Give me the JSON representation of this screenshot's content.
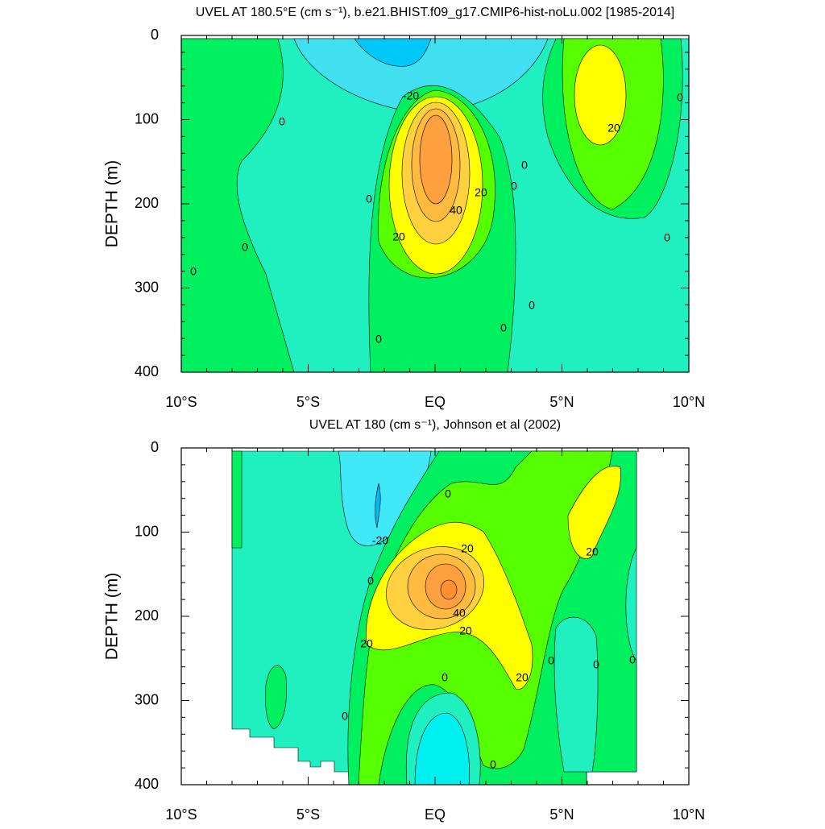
{
  "chart_data": [
    {
      "type": "contour",
      "title": "UVEL AT 180.5°E (cm s⁻¹), b.e21.BHIST.f09_g17.CMIP6-hist-noLu.002 [1985-2014]",
      "ylabel": "DEPTH (m)",
      "xlim": [
        -10,
        10
      ],
      "ylim": [
        0,
        400
      ],
      "y_inverted": true,
      "xticks": [
        {
          "value": -10,
          "label": "10°S"
        },
        {
          "value": -5,
          "label": "5°S"
        },
        {
          "value": 0,
          "label": "EQ"
        },
        {
          "value": 5,
          "label": "5°N"
        },
        {
          "value": 10,
          "label": "10°N"
        }
      ],
      "yticks": [
        0,
        100,
        200,
        300,
        400
      ],
      "contour_labels": [
        -20,
        0,
        0,
        0,
        0,
        0,
        20,
        40,
        20,
        0,
        0,
        0,
        0,
        20,
        0,
        0
      ]
    },
    {
      "type": "contour",
      "title": "UVEL AT 180 (cm s⁻¹), Johnson et al (2002)",
      "ylabel": "DEPTH (m)",
      "xlim": [
        -10,
        10
      ],
      "ylim": [
        0,
        400
      ],
      "y_inverted": true,
      "xticks": [
        {
          "value": -10,
          "label": "10°S"
        },
        {
          "value": -5,
          "label": "5°S"
        },
        {
          "value": 0,
          "label": "EQ"
        },
        {
          "value": 5,
          "label": "5°N"
        },
        {
          "value": 10,
          "label": "10°N"
        }
      ],
      "yticks": [
        0,
        100,
        200,
        300,
        400
      ],
      "contour_labels": [
        -20,
        0,
        20,
        0,
        40,
        20,
        20,
        20,
        0,
        0,
        0,
        0,
        0,
        0,
        20
      ]
    }
  ]
}
